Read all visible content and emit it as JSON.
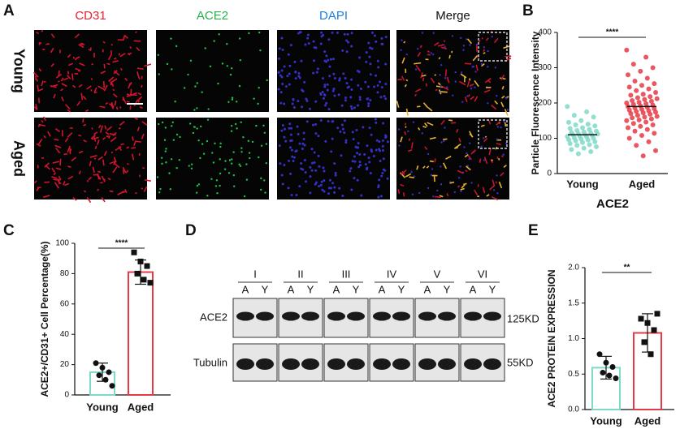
{
  "panel_labels": [
    "A",
    "B",
    "C",
    "D",
    "E"
  ],
  "panel_a": {
    "columns": [
      "CD31",
      "ACE2",
      "DAPI",
      "Merge"
    ],
    "rows": [
      "Young",
      "Aged"
    ]
  },
  "panel_d": {
    "lanes": [
      "I",
      "II",
      "III",
      "IV",
      "V",
      "VI"
    ],
    "lane_samples": [
      "A",
      "Y"
    ],
    "rows": [
      "ACE2",
      "Tubulin"
    ],
    "sizes": [
      "125KD",
      "55KD"
    ]
  },
  "chart_data": [
    {
      "type": "dot",
      "ylabel": "Particle Fluorescence Intensity",
      "xlabel": "ACE2",
      "categories": [
        "Young",
        "Aged"
      ],
      "colors": [
        "#7fd9c8",
        "#e83a45"
      ],
      "values": [
        110,
        190
      ],
      "points": [
        [
          190,
          175,
          165,
          160,
          150,
          145,
          140,
          138,
          135,
          130,
          128,
          125,
          122,
          120,
          118,
          116,
          115,
          113,
          112,
          110,
          110,
          108,
          106,
          105,
          104,
          102,
          100,
          98,
          96,
          95,
          93,
          90,
          88,
          85,
          82,
          80,
          76,
          72,
          68,
          62,
          56
        ],
        [
          350,
          330,
          310,
          300,
          290,
          280,
          270,
          262,
          255,
          250,
          245,
          240,
          235,
          230,
          225,
          222,
          218,
          215,
          212,
          210,
          207,
          205,
          202,
          200,
          198,
          196,
          194,
          192,
          190,
          188,
          186,
          184,
          182,
          180,
          178,
          176,
          174,
          172,
          170,
          168,
          165,
          162,
          160,
          158,
          155,
          152,
          150,
          146,
          142,
          138,
          134,
          130,
          125,
          120,
          114,
          108,
          100,
          90,
          80,
          65,
          50
        ]
      ],
      "significance": "****",
      "ylim": [
        0,
        400
      ],
      "yticks": [
        0,
        100,
        200,
        300,
        400
      ]
    },
    {
      "type": "bar",
      "ylabel": "ACE2+/CD31+ Cell Percentage(%)",
      "categories": [
        "Young",
        "Aged"
      ],
      "colors": [
        "#7fd9c8",
        "#e83a45"
      ],
      "values": [
        15,
        81
      ],
      "errors": [
        6,
        8
      ],
      "points": [
        [
          21,
          18,
          15,
          13,
          10,
          6
        ],
        [
          94,
          88,
          85,
          80,
          76,
          74
        ]
      ],
      "significance": "****",
      "ylim": [
        0,
        100
      ],
      "yticks": [
        0,
        20,
        40,
        60,
        80,
        100
      ]
    },
    {
      "type": "bar",
      "ylabel": "ACE2 PROTEIN EXPRESSION",
      "categories": [
        "Young",
        "Aged"
      ],
      "colors": [
        "#7fd9c8",
        "#e83a45"
      ],
      "values": [
        0.59,
        1.08
      ],
      "errors": [
        0.16,
        0.27
      ],
      "points": [
        [
          0.78,
          0.66,
          0.6,
          0.52,
          0.48,
          0.44
        ],
        [
          1.28,
          1.22,
          1.12,
          0.95,
          0.78,
          1.35
        ]
      ],
      "significance": "**",
      "ylim": [
        0,
        2
      ],
      "yticks": [
        {
          "value": 0,
          "label": "0.0"
        },
        {
          "value": 0.5,
          "label": "0.5"
        },
        {
          "value": 1,
          "label": "1.0"
        },
        {
          "value": 1.5,
          "label": "1.5"
        },
        {
          "value": 2,
          "label": "2.0"
        }
      ]
    }
  ]
}
